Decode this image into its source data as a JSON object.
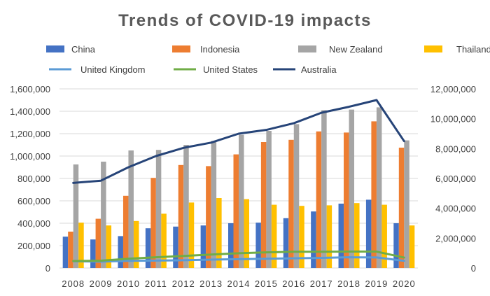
{
  "chart_data": {
    "type": "bar",
    "title": "Trends of COVID-19 impacts",
    "categories": [
      "2008",
      "2009",
      "2010",
      "2011",
      "2012",
      "2013",
      "2014",
      "2015",
      "2016",
      "2017",
      "2018",
      "2019",
      "2020"
    ],
    "ylim_left": [
      0,
      1600000
    ],
    "yticks_left": [
      "0",
      "200,000",
      "400,000",
      "600,000",
      "800,000",
      "1,000,000",
      "1,200,000",
      "1,400,000",
      "1,600,000"
    ],
    "ylim_right": [
      0,
      12000000
    ],
    "yticks_right": [
      "0",
      "2,000,000",
      "4,000,000",
      "6,000,000",
      "8,000,000",
      "10,000,000",
      "12,000,000"
    ],
    "grid": true,
    "legend_position": "top",
    "bar_series": [
      {
        "name": "China",
        "color": "#4472C4",
        "values": [
          280000,
          255000,
          285000,
          355000,
          370000,
          380000,
          400000,
          405000,
          445000,
          505000,
          575000,
          610000,
          400000
        ]
      },
      {
        "name": "Indonesia",
        "color": "#ED7D31",
        "values": [
          325000,
          440000,
          645000,
          805000,
          920000,
          910000,
          1015000,
          1125000,
          1145000,
          1220000,
          1210000,
          1310000,
          1075000
        ]
      },
      {
        "name": "New Zealand",
        "color": "#A5A5A5",
        "values": [
          925000,
          950000,
          1050000,
          1055000,
          1100000,
          1135000,
          1190000,
          1225000,
          1285000,
          1410000,
          1415000,
          1435000,
          1140000
        ]
      },
      {
        "name": "Thailand",
        "color": "#FFC000",
        "values": [
          405000,
          380000,
          420000,
          485000,
          585000,
          625000,
          615000,
          565000,
          555000,
          560000,
          580000,
          565000,
          380000
        ]
      }
    ],
    "line_series": [
      {
        "name": "United Kingdom",
        "color": "#5B9BD5",
        "axis": "right",
        "values": [
          450000,
          430000,
          480000,
          500000,
          520000,
          560000,
          590000,
          620000,
          650000,
          680000,
          720000,
          710000,
          480000
        ]
      },
      {
        "name": "United States",
        "color": "#70AD47",
        "axis": "right",
        "values": [
          470000,
          490000,
          620000,
          720000,
          810000,
          900000,
          990000,
          1050000,
          1090000,
          1090000,
          1100000,
          1100000,
          700000
        ]
      },
      {
        "name": "Australia",
        "color": "#264478",
        "axis": "right",
        "values": [
          5700000,
          5850000,
          6750000,
          7500000,
          8050000,
          8400000,
          9000000,
          9250000,
          9700000,
          10400000,
          10800000,
          11250000,
          8500000
        ]
      }
    ]
  }
}
